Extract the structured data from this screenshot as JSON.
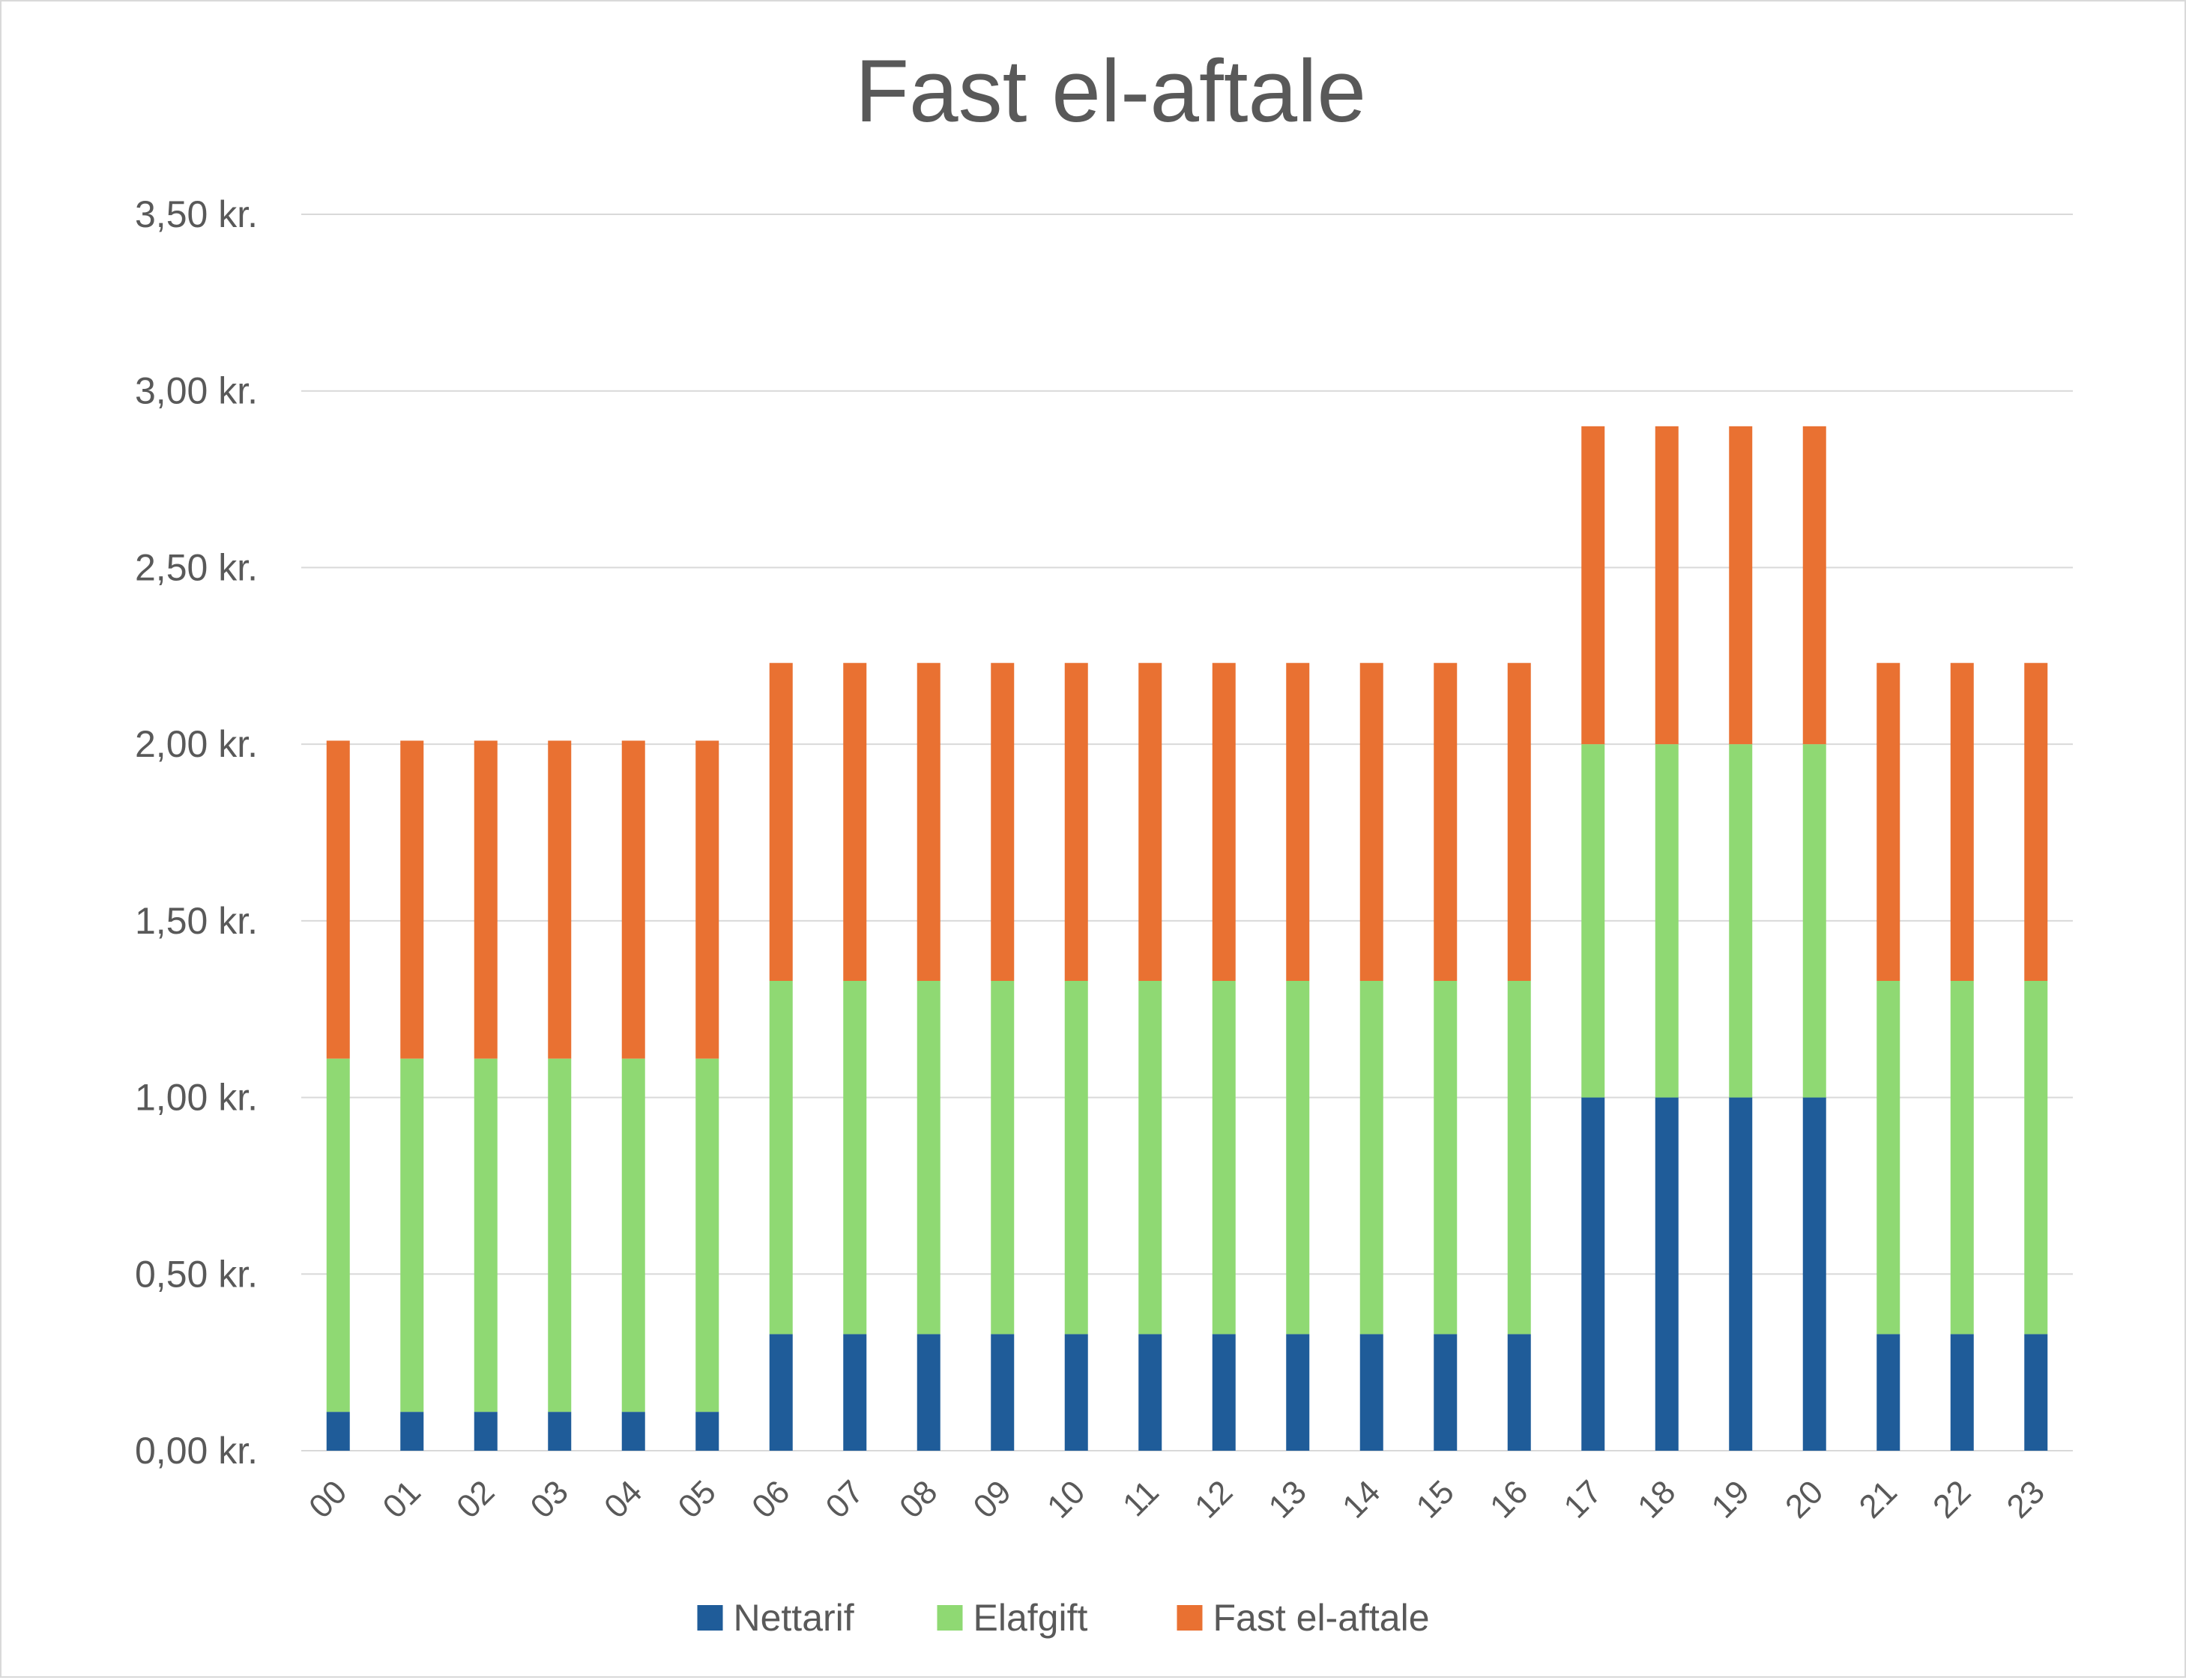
{
  "chart_data": {
    "type": "bar",
    "stacked": true,
    "title": "Fast el-aftale",
    "xlabel": "",
    "ylabel": "",
    "categories": [
      "00",
      "01",
      "02",
      "03",
      "04",
      "05",
      "06",
      "07",
      "08",
      "09",
      "10",
      "11",
      "12",
      "13",
      "14",
      "15",
      "16",
      "17",
      "18",
      "19",
      "20",
      "21",
      "22",
      "23"
    ],
    "series": [
      {
        "name": "Nettarif",
        "color": "#1f5c99",
        "values": [
          0.11,
          0.11,
          0.11,
          0.11,
          0.11,
          0.11,
          0.33,
          0.33,
          0.33,
          0.33,
          0.33,
          0.33,
          0.33,
          0.33,
          0.33,
          0.33,
          0.33,
          1.0,
          1.0,
          1.0,
          1.0,
          0.33,
          0.33,
          0.33
        ]
      },
      {
        "name": "Elafgift",
        "color": "#8fd973",
        "values": [
          1.0,
          1.0,
          1.0,
          1.0,
          1.0,
          1.0,
          1.0,
          1.0,
          1.0,
          1.0,
          1.0,
          1.0,
          1.0,
          1.0,
          1.0,
          1.0,
          1.0,
          1.0,
          1.0,
          1.0,
          1.0,
          1.0,
          1.0,
          1.0
        ]
      },
      {
        "name": "Fast el-aftale",
        "color": "#e97132",
        "values": [
          0.9,
          0.9,
          0.9,
          0.9,
          0.9,
          0.9,
          0.9,
          0.9,
          0.9,
          0.9,
          0.9,
          0.9,
          0.9,
          0.9,
          0.9,
          0.9,
          0.9,
          0.9,
          0.9,
          0.9,
          0.9,
          0.9,
          0.9,
          0.9
        ]
      }
    ],
    "ylim": [
      0,
      3.5
    ],
    "yticks": [
      0,
      0.5,
      1,
      1.5,
      2,
      2.5,
      3,
      3.5
    ],
    "ytick_labels": [
      "0,00 kr.",
      "0,50 kr.",
      "1,00 kr.",
      "1,50 kr.",
      "2,00 kr.",
      "2,50 kr.",
      "3,00 kr.",
      "3,50 kr."
    ],
    "grid": true,
    "legend_position": "bottom",
    "x_tick_rotation": "-45"
  },
  "colors": {
    "grid": "#d9d9d9",
    "text": "#595959",
    "border": "#d9d9d9"
  }
}
